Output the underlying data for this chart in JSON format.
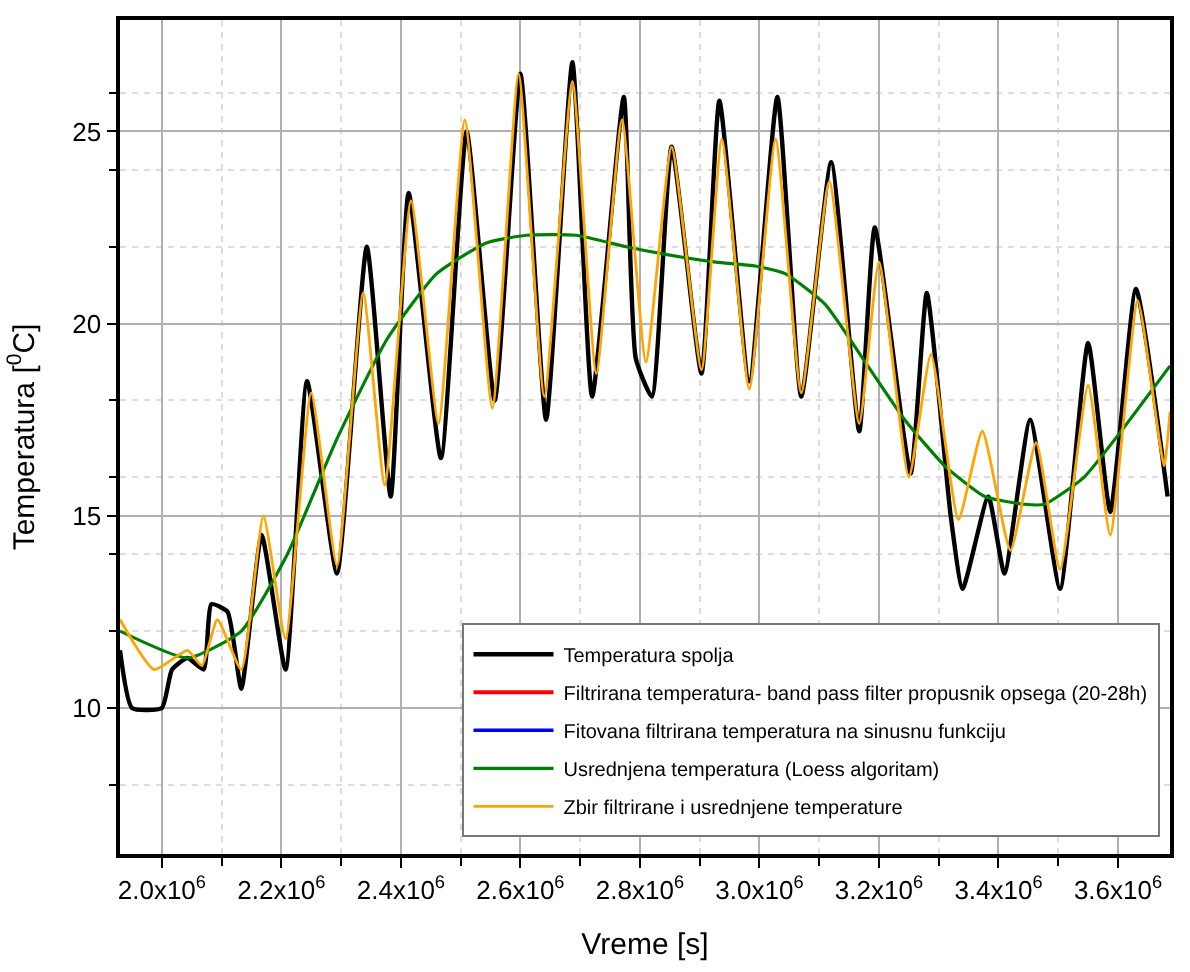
{
  "chart_data": {
    "type": "line",
    "xlabel": "Vreme [s]",
    "ylabel": "Temperatura [$^{0}$C]",
    "xlim": [
      1930000,
      3687000
    ],
    "ylim": [
      6.2,
      27.9
    ],
    "xticks": [
      {
        "value": 2000000,
        "label": "2.0x10$^{6}$"
      },
      {
        "value": 2200000,
        "label": "2.2x10$^{6}$"
      },
      {
        "value": 2400000,
        "label": "2.4x10$^{6}$"
      },
      {
        "value": 2600000,
        "label": "2.6x10$^{6}$"
      },
      {
        "value": 2800000,
        "label": "2.8x10$^{6}$"
      },
      {
        "value": 3000000,
        "label": "3.0x10$^{6}$"
      },
      {
        "value": 3200000,
        "label": "3.2x10$^{6}$"
      },
      {
        "value": 3400000,
        "label": "3.4x10$^{6}$"
      },
      {
        "value": 3600000,
        "label": "3.6x10$^{6}$"
      }
    ],
    "yticks": [
      10,
      15,
      20,
      25
    ],
    "grid": true,
    "legend": "bottom right",
    "series": [
      {
        "name": "Temperatura spolja",
        "color": "#000000",
        "x": [
          1930000,
          1950000,
          2000000,
          2017000,
          2043000,
          2070000,
          2083000,
          2110000,
          2133000,
          2167000,
          2207000,
          2243000,
          2293000,
          2343000,
          2383000,
          2413000,
          2467000,
          2510000,
          2557000,
          2600000,
          2643000,
          2687000,
          2720000,
          2773000,
          2793000,
          2820000,
          2853000,
          2903000,
          2933000,
          2983000,
          3030000,
          3070000,
          3120000,
          3167000,
          3193000,
          3253000,
          3280000,
          3320000,
          3340000,
          3383000,
          3410000,
          3453000,
          3503000,
          3550000,
          3587000,
          3630000,
          3683000
        ],
        "values": [
          11.5,
          10.0,
          10.0,
          11.0,
          11.3,
          11.0,
          12.7,
          12.5,
          10.5,
          14.5,
          11.0,
          18.5,
          13.5,
          22.0,
          15.5,
          23.4,
          16.5,
          25.0,
          18.0,
          26.5,
          17.5,
          26.8,
          18.1,
          25.9,
          19.1,
          18.1,
          24.6,
          18.7,
          25.8,
          18.5,
          25.9,
          18.1,
          24.2,
          17.2,
          22.5,
          16.1,
          20.8,
          15.0,
          13.1,
          15.5,
          13.5,
          17.5,
          13.1,
          19.5,
          15.1,
          20.9,
          15.5
        ]
      },
      {
        "name": "Filtrirana temperatura- band pass filter propusnik opsega (20-28h)",
        "color": "#ff0000"
      },
      {
        "name": "Fitovana filtrirana temperatura na sinusnu funkciju",
        "color": "#0000ff"
      },
      {
        "name": "Usrednjena temperatura (Loess algoritam)",
        "color": "#008000",
        "x": [
          1930000,
          2043000,
          2133000,
          2210000,
          2293000,
          2377000,
          2460000,
          2543000,
          2610000,
          2693000,
          2777000,
          2843000,
          2927000,
          2993000,
          3043000,
          3110000,
          3177000,
          3243000,
          3310000,
          3377000,
          3443000,
          3477000,
          3543000,
          3610000,
          3687000
        ],
        "values": [
          12.0,
          11.3,
          12.0,
          14.0,
          17.0,
          19.6,
          21.3,
          22.1,
          22.3,
          22.3,
          22.0,
          21.8,
          21.6,
          21.5,
          21.3,
          20.5,
          19.0,
          17.5,
          16.3,
          15.5,
          15.3,
          15.3,
          16.0,
          17.3,
          18.9
        ]
      },
      {
        "name": "Zbir filtrirane i usrednjene temperature",
        "color": "#ffa500",
        "x": [
          1930000,
          1987000,
          2043000,
          2067000,
          2093000,
          2133000,
          2170000,
          2207000,
          2250000,
          2293000,
          2337000,
          2373000,
          2417000,
          2463000,
          2507000,
          2553000,
          2597000,
          2640000,
          2687000,
          2727000,
          2770000,
          2810000,
          2853000,
          2903000,
          2937000,
          2983000,
          3027000,
          3070000,
          3117000,
          3167000,
          3200000,
          3250000,
          3287000,
          3333000,
          3373000,
          3420000,
          3463000,
          3503000,
          3550000,
          3587000,
          3633000,
          3677000,
          3687000
        ],
        "values": [
          12.3,
          11.0,
          11.5,
          11.1,
          12.3,
          11.0,
          15.0,
          11.8,
          18.2,
          13.7,
          20.8,
          15.8,
          23.2,
          17.4,
          25.3,
          17.8,
          26.5,
          18.1,
          26.3,
          18.7,
          25.3,
          19.0,
          24.6,
          18.8,
          24.8,
          18.3,
          24.8,
          18.2,
          23.7,
          17.4,
          21.6,
          16.0,
          19.2,
          14.9,
          17.2,
          14.1,
          16.9,
          13.6,
          18.4,
          14.5,
          20.6,
          16.3,
          17.7
        ]
      }
    ]
  }
}
